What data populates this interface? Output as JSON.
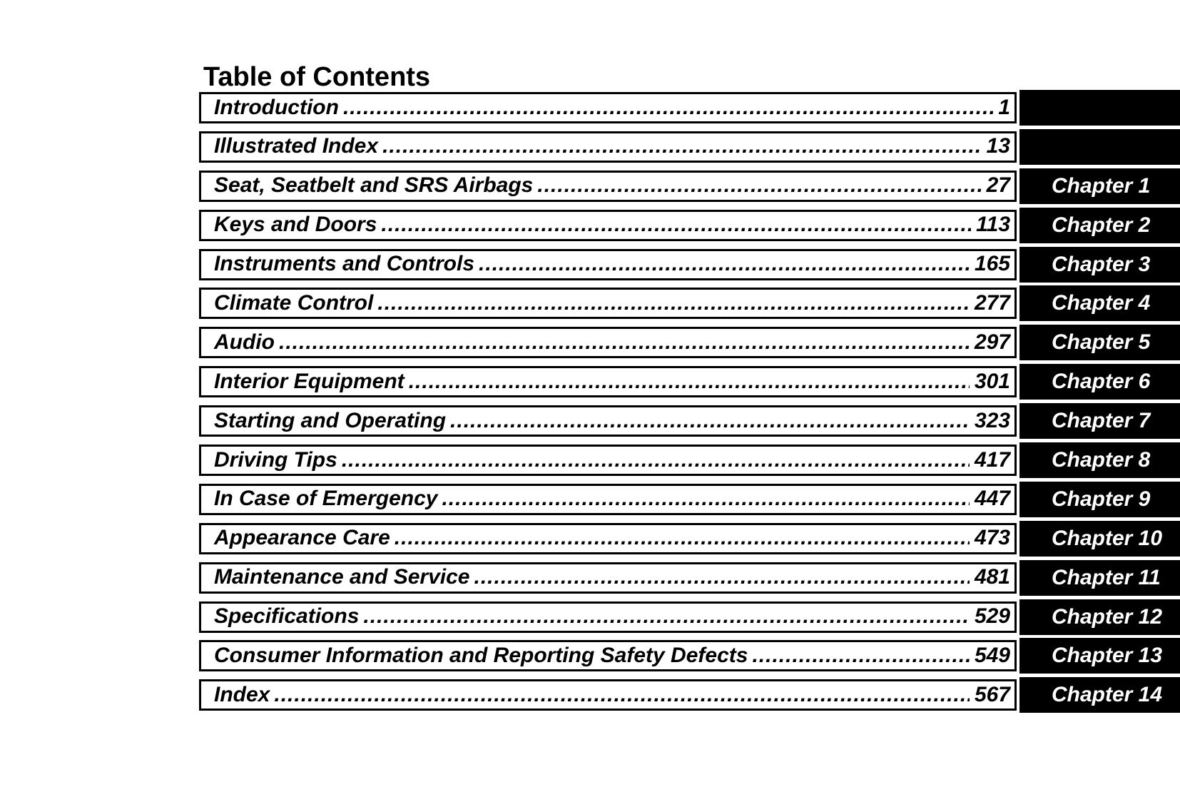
{
  "page_title": "Table of Contents",
  "colors": {
    "ink": "#000000",
    "paper": "#ffffff",
    "tab_background": "#000000",
    "tab_text": "#ffffff"
  },
  "toc": {
    "entries": [
      {
        "title": "Introduction",
        "page": "1",
        "chapter": ""
      },
      {
        "title": "Illustrated Index",
        "page": "13",
        "chapter": ""
      },
      {
        "title": "Seat, Seatbelt and SRS Airbags",
        "page": "27",
        "chapter": "Chapter 1"
      },
      {
        "title": "Keys and Doors",
        "page": "113",
        "chapter": "Chapter 2"
      },
      {
        "title": "Instruments and Controls",
        "page": "165",
        "chapter": "Chapter 3"
      },
      {
        "title": "Climate Control",
        "page": "277",
        "chapter": "Chapter 4"
      },
      {
        "title": "Audio",
        "page": "297",
        "chapter": "Chapter 5"
      },
      {
        "title": "Interior Equipment",
        "page": "301",
        "chapter": "Chapter 6"
      },
      {
        "title": "Starting and Operating",
        "page": "323",
        "chapter": "Chapter 7"
      },
      {
        "title": "Driving Tips",
        "page": "417",
        "chapter": "Chapter 8"
      },
      {
        "title": "In Case of Emergency",
        "page": "447",
        "chapter": "Chapter 9"
      },
      {
        "title": "Appearance Care",
        "page": "473",
        "chapter": "Chapter 10"
      },
      {
        "title": "Maintenance and Service",
        "page": "481",
        "chapter": "Chapter 11"
      },
      {
        "title": "Specifications",
        "page": "529",
        "chapter": "Chapter 12"
      },
      {
        "title": "Consumer Information and Reporting Safety Defects",
        "page": "549",
        "chapter": "Chapter 13"
      },
      {
        "title": "Index",
        "page": "567",
        "chapter": "Chapter 14"
      }
    ]
  }
}
